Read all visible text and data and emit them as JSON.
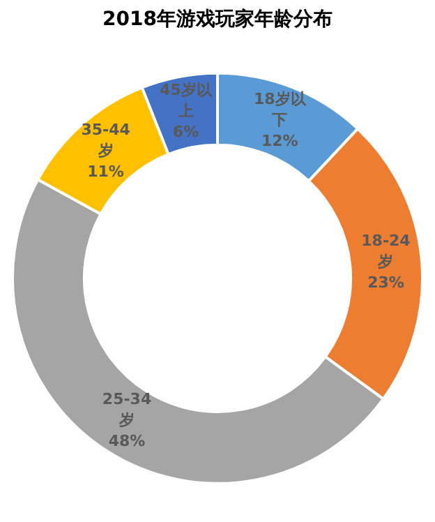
{
  "chart_data": {
    "type": "donut",
    "title": "2018年游戏玩家年龄分布",
    "categories": [
      "18岁以下",
      "18-24岁",
      "25-34岁",
      "35-44岁",
      "45岁以上"
    ],
    "values": [
      12,
      23,
      48,
      11,
      6
    ],
    "value_labels": [
      "12%",
      "23%",
      "48%",
      "11%",
      "6%"
    ],
    "colors": [
      "#5b9bd5",
      "#ed7d31",
      "#a5a5a5",
      "#ffc000",
      "#4472c4"
    ],
    "legend": false
  }
}
